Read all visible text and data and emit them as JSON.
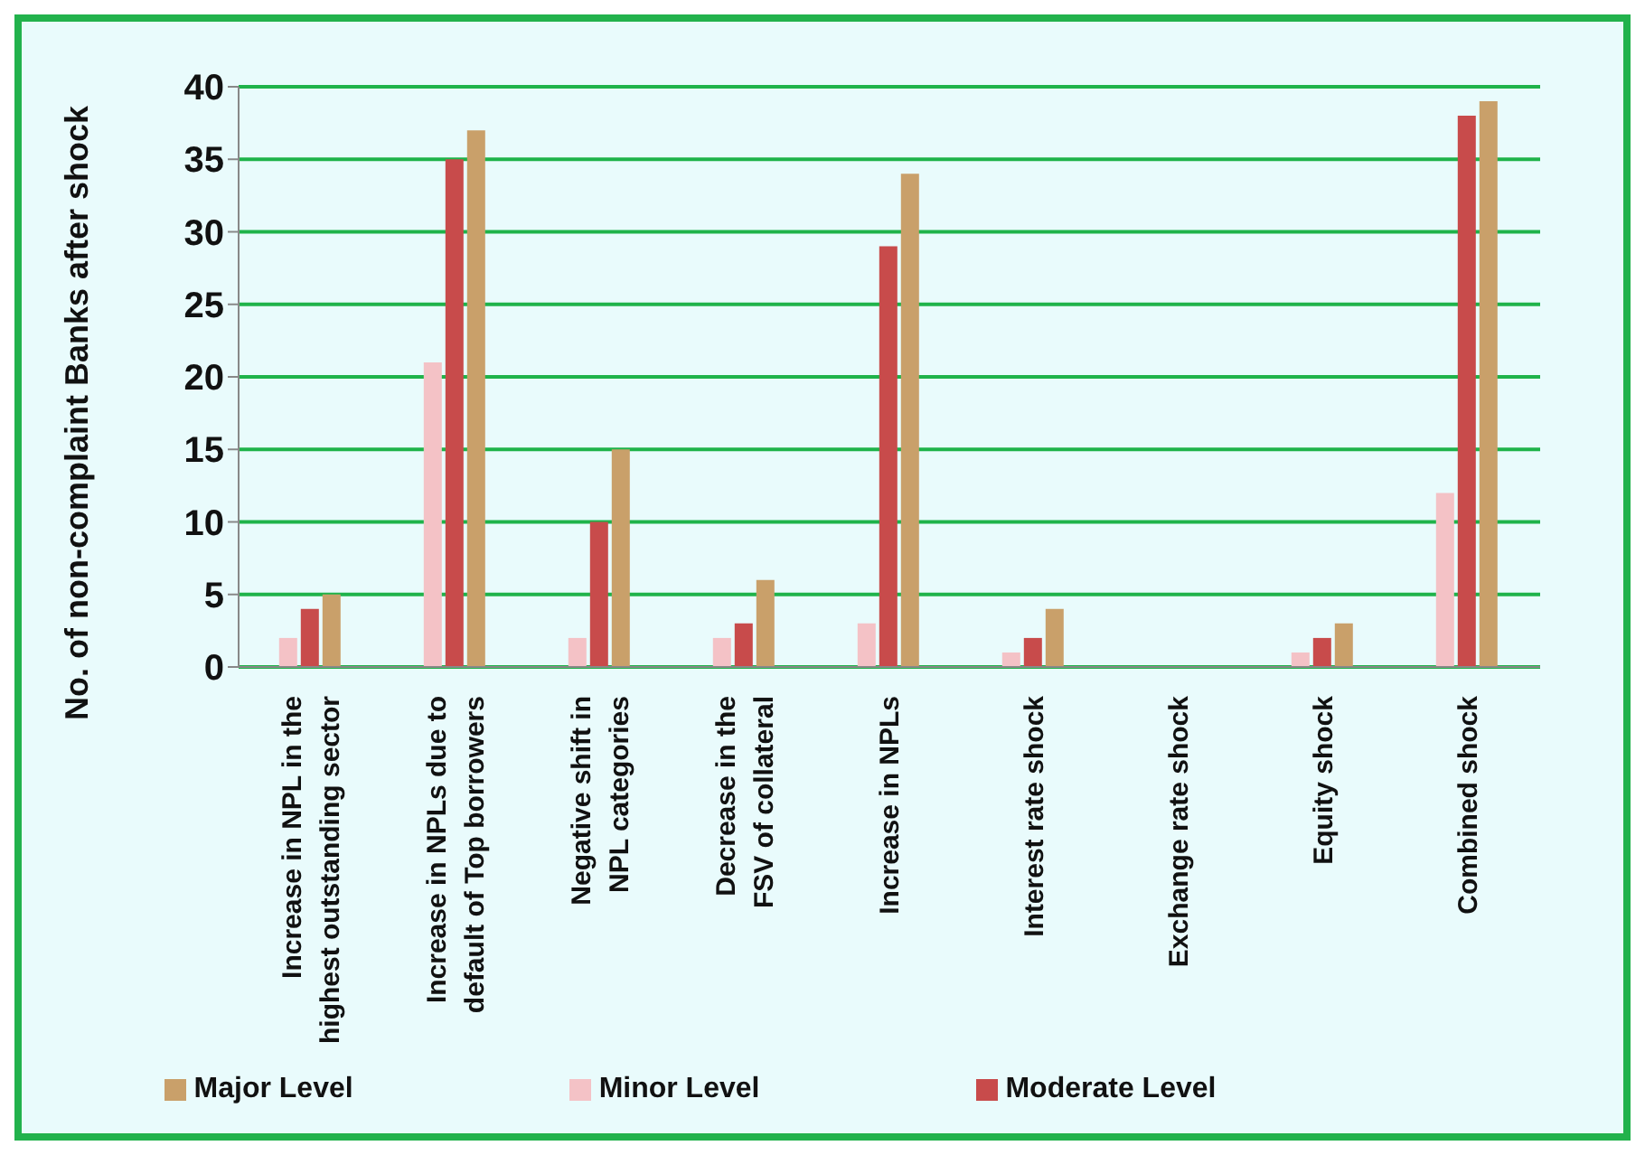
{
  "chart_data": {
    "type": "bar",
    "ylabel": "No. of non-complaint Banks after shock",
    "categories": [
      "Increase in NPL in the\nhighest outstanding sector",
      "Increase in NPLs due to\ndefault of Top borrowers",
      "Negative shift in\nNPL categories",
      "Decrease in the\nFSV of collateral",
      "Increase in NPLs",
      "Interest rate shock",
      "Exchange rate shock",
      "Equity shock",
      "Combined shock"
    ],
    "series": [
      {
        "name": "Minor Level",
        "color": "#f4c2c6",
        "values": [
          2,
          21,
          2,
          2,
          3,
          1,
          0,
          1,
          12
        ]
      },
      {
        "name": "Moderate Level",
        "color": "#c84b4b",
        "values": [
          4,
          35,
          10,
          3,
          29,
          2,
          0,
          2,
          38
        ]
      },
      {
        "name": "Major Level",
        "color": "#c9a06a",
        "values": [
          5,
          37,
          15,
          6,
          34,
          4,
          0,
          3,
          39
        ]
      }
    ],
    "ylim": [
      0,
      40
    ],
    "yticks": [
      0,
      5,
      10,
      15,
      20,
      25,
      30,
      35,
      40
    ],
    "grid": "y",
    "legend": "bottom"
  }
}
